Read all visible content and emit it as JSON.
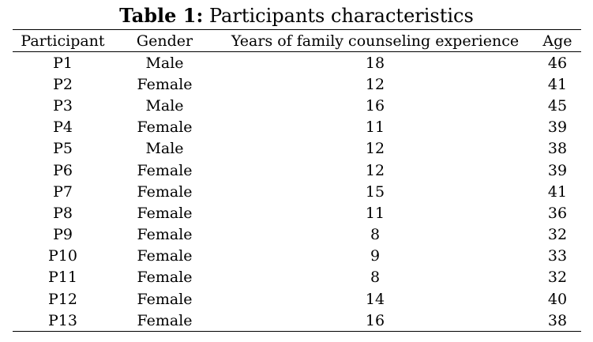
{
  "caption": {
    "label": "Table 1:",
    "text": " Participants characteristics"
  },
  "table": {
    "headers": [
      "Participant",
      "Gender",
      "Years of family counseling experience",
      "Age"
    ],
    "rows": [
      [
        "P1",
        "Male",
        "18",
        "46"
      ],
      [
        "P2",
        "Female",
        "12",
        "41"
      ],
      [
        "P3",
        "Male",
        "16",
        "45"
      ],
      [
        "P4",
        "Female",
        "11",
        "39"
      ],
      [
        "P5",
        "Male",
        "12",
        "38"
      ],
      [
        "P6",
        "Female",
        "12",
        "39"
      ],
      [
        "P7",
        "Female",
        "15",
        "41"
      ],
      [
        "P8",
        "Female",
        "11",
        "36"
      ],
      [
        "P9",
        "Female",
        "8",
        "32"
      ],
      [
        "P10",
        "Female",
        "9",
        "33"
      ],
      [
        "P11",
        "Female",
        "8",
        "32"
      ],
      [
        "P12",
        "Female",
        "14",
        "40"
      ],
      [
        "P13",
        "Female",
        "16",
        "38"
      ]
    ]
  }
}
